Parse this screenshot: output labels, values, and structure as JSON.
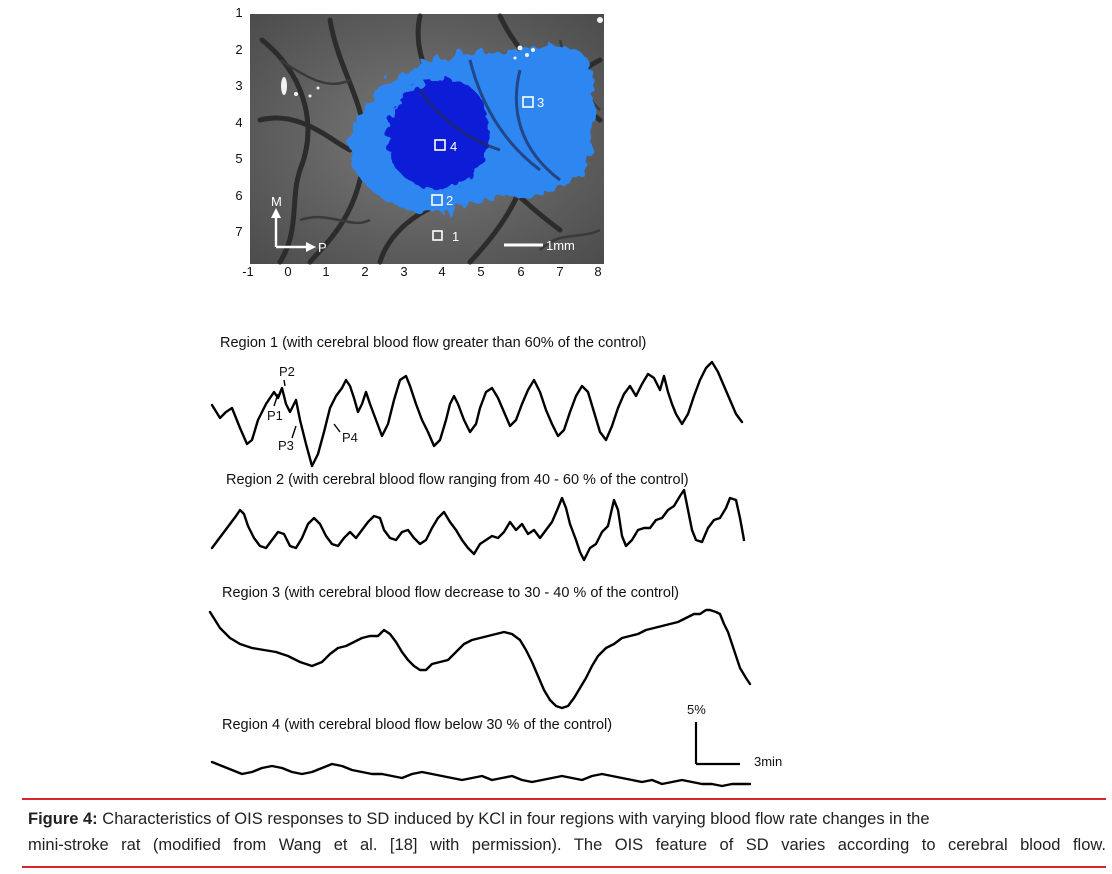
{
  "map": {
    "y_ticks": [
      "1",
      "2",
      "3",
      "4",
      "5",
      "6",
      "7"
    ],
    "x_ticks": [
      "-1",
      "0",
      "1",
      "2",
      "3",
      "4",
      "5",
      "6",
      "7",
      "8"
    ],
    "rois": [
      "1",
      "2",
      "3",
      "4"
    ],
    "orientation": {
      "medial": "M",
      "posterior": "P"
    },
    "scale_bar_label": "1mm",
    "colors": {
      "tissue": "#6a6a6a",
      "vessels": "#2e2e2e",
      "sd_light": "#2f86f0",
      "sd_dark": "#0a1fd6"
    }
  },
  "chart_data": {
    "type": "line",
    "series": [
      {
        "name": "Region  1 (with cerebral blood flow greater than 60% of the control)",
        "annotations": [
          "P1",
          "P2",
          "P3",
          "P4"
        ]
      },
      {
        "name": "Region  2 (with cerebral blood flow ranging from 40 - 60 % of the control)"
      },
      {
        "name": "Region 3 (with cerebral blood flow decrease to 30 - 40 % of the control)"
      },
      {
        "name": "Region  4 (with cerebral blood flow below 30 % of the control)"
      }
    ],
    "scale_bar": {
      "y_label": "5%",
      "x_label": "3min"
    }
  },
  "caption": {
    "label": "Figure 4:",
    "line1": " Characteristics of OIS responses to SD induced by KCl in four regions with varying blood flow rate changes in the",
    "line2": "mini-stroke rat (modified from Wang et al. [18] with permission). The OIS feature of SD varies according to cerebral blood flow."
  }
}
